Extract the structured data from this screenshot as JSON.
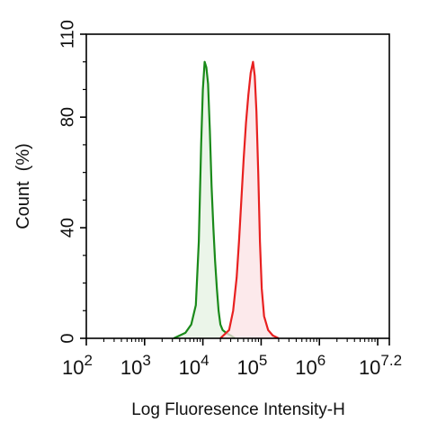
{
  "chart_data": {
    "type": "area",
    "title": "",
    "xlabel": "Log Fluoresence Intensity-H",
    "ylabel": "Count  (%)",
    "x_scale": "log10",
    "xlim_log10": [
      2,
      7.2
    ],
    "ylim": [
      0,
      110
    ],
    "y_ticks": [
      {
        "value": 0,
        "label": "0"
      },
      {
        "value": 40,
        "label": "40"
      },
      {
        "value": 80,
        "label": "80"
      },
      {
        "value": 110,
        "label": "110"
      }
    ],
    "x_ticks": [
      {
        "value": 2,
        "base": "10",
        "exp": "2"
      },
      {
        "value": 3,
        "base": "10",
        "exp": "3"
      },
      {
        "value": 4,
        "base": "10",
        "exp": "4"
      },
      {
        "value": 5,
        "base": "10",
        "exp": "5"
      },
      {
        "value": 6,
        "base": "10",
        "exp": "6"
      },
      {
        "value": 7.2,
        "base": "10",
        "exp": "7.2"
      }
    ],
    "grid": false,
    "legend": "none",
    "series": [
      {
        "color": "#1a8a1a",
        "fill": "#e4f2e2",
        "log10_x": [
          3.5,
          3.7,
          3.8,
          3.88,
          3.93,
          3.97,
          4.0,
          4.03,
          4.06,
          4.09,
          4.12,
          4.15,
          4.18,
          4.21,
          4.24,
          4.27,
          4.3,
          4.34,
          4.4,
          4.48,
          4.55
        ],
        "y": [
          0,
          2,
          5,
          12,
          35,
          70,
          90,
          100,
          98,
          92,
          75,
          55,
          40,
          28,
          18,
          10,
          5,
          3,
          2,
          1,
          0
        ]
      },
      {
        "color": "#e82020",
        "fill": "#fbe2e4",
        "log10_x": [
          4.3,
          4.45,
          4.52,
          4.58,
          4.62,
          4.66,
          4.7,
          4.74,
          4.78,
          4.82,
          4.86,
          4.89,
          4.92,
          4.95,
          4.98,
          5.01,
          5.05,
          5.12,
          5.2,
          5.3
        ],
        "y": [
          0,
          3,
          10,
          22,
          35,
          50,
          65,
          78,
          88,
          96,
          100,
          95,
          82,
          60,
          35,
          18,
          8,
          3,
          1,
          0
        ]
      }
    ]
  }
}
